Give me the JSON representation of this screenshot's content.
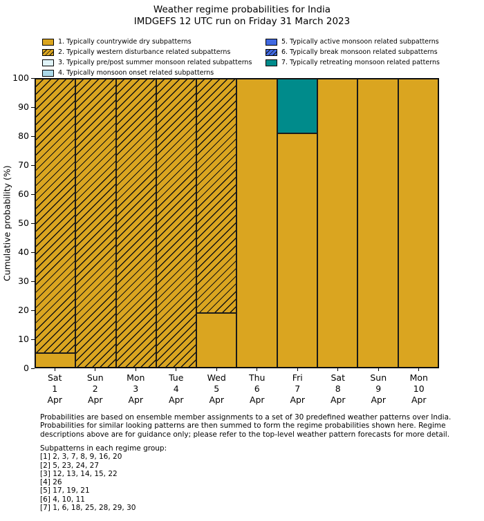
{
  "title": {
    "line1": "Weather regime probabilities for India",
    "line2": "IMDGEFS 12 UTC run on Friday 31 March 2023"
  },
  "legend": {
    "items": [
      {
        "label": "1. Typically countrywide dry subpatterns",
        "color": "#DAA520",
        "hatch": false
      },
      {
        "label": "2. Typically western disturbance related subpatterns",
        "color": "#DAA520",
        "hatch": true
      },
      {
        "label": "3. Typically pre/post summer monsoon related subpatterns",
        "color": "#E0F3F8",
        "hatch": false
      },
      {
        "label": "4. Typically monsoon onset related subpatterns",
        "color": "#ABD9E9",
        "hatch": false
      },
      {
        "label": "5. Typically active monsoon related subpatterns",
        "color": "#4169E1",
        "hatch": false
      },
      {
        "label": "6. Typically break monsoon related subpatterns",
        "color": "#4169E1",
        "hatch": true
      },
      {
        "label": "7. Typically retreating monsoon related patterns",
        "color": "#008B8B",
        "hatch": false
      }
    ]
  },
  "chart_data": {
    "type": "bar",
    "stacked": true,
    "title": "Weather regime probabilities for India",
    "subtitle": "IMDGEFS 12 UTC run on Friday 31 March 2023",
    "xlabel": "",
    "ylabel": "Cumulative probability (%)",
    "ylim": [
      0,
      100
    ],
    "yticks": [
      0,
      10,
      20,
      30,
      40,
      50,
      60,
      70,
      80,
      90,
      100
    ],
    "grid": false,
    "legend_position": "top",
    "bar_edge_color": "#1a1a1a",
    "categories": [
      [
        "Sat",
        "1",
        "Apr"
      ],
      [
        "Sun",
        "2",
        "Apr"
      ],
      [
        "Mon",
        "3",
        "Apr"
      ],
      [
        "Tue",
        "4",
        "Apr"
      ],
      [
        "Wed",
        "5",
        "Apr"
      ],
      [
        "Thu",
        "6",
        "Apr"
      ],
      [
        "Fri",
        "7",
        "Apr"
      ],
      [
        "Sat",
        "8",
        "Apr"
      ],
      [
        "Sun",
        "9",
        "Apr"
      ],
      [
        "Mon",
        "10",
        "Apr"
      ]
    ],
    "series": [
      {
        "name": "1. Typically countrywide dry subpatterns",
        "color": "#DAA520",
        "hatch": false,
        "values": [
          5,
          0,
          0,
          0,
          19,
          100,
          81,
          100,
          100,
          100
        ]
      },
      {
        "name": "2. Typically western disturbance related subpatterns",
        "color": "#DAA520",
        "hatch": true,
        "values": [
          95,
          100,
          100,
          100,
          81,
          0,
          0,
          0,
          0,
          0
        ]
      },
      {
        "name": "3. Typically pre/post summer monsoon related subpatterns",
        "color": "#E0F3F8",
        "hatch": false,
        "values": [
          0,
          0,
          0,
          0,
          0,
          0,
          0,
          0,
          0,
          0
        ]
      },
      {
        "name": "4. Typically monsoon onset related subpatterns",
        "color": "#ABD9E9",
        "hatch": false,
        "values": [
          0,
          0,
          0,
          0,
          0,
          0,
          0,
          0,
          0,
          0
        ]
      },
      {
        "name": "5. Typically active monsoon related subpatterns",
        "color": "#4169E1",
        "hatch": false,
        "values": [
          0,
          0,
          0,
          0,
          0,
          0,
          0,
          0,
          0,
          0
        ]
      },
      {
        "name": "6. Typically break monsoon related subpatterns",
        "color": "#4169E1",
        "hatch": true,
        "values": [
          0,
          0,
          0,
          0,
          0,
          0,
          0,
          0,
          0,
          0
        ]
      },
      {
        "name": "7. Typically retreating monsoon related patterns",
        "color": "#008B8B",
        "hatch": false,
        "values": [
          0,
          0,
          0,
          0,
          0,
          0,
          19,
          0,
          0,
          0
        ]
      }
    ]
  },
  "footer": {
    "lines": [
      "Probabilities are based on ensemble member assignments to a set of 30 predefined weather patterns over India.",
      "Probabilities for similar looking patterns are then summed to form the regime probabilities shown here. Regime",
      "descriptions above are for guidance only; please refer to the top-level weather pattern forecasts for more detail."
    ]
  },
  "subpatterns": {
    "heading": "Subpatterns in each regime group:",
    "items": [
      "[1] 2, 3, 7, 8, 9, 16, 20",
      "[2] 5, 23, 24, 27",
      "[3] 12, 13, 14, 15, 22",
      "[4] 26",
      "[5] 17, 19, 21",
      "[6] 4, 10, 11",
      "[7] 1, 6, 18, 25, 28, 29, 30"
    ]
  }
}
